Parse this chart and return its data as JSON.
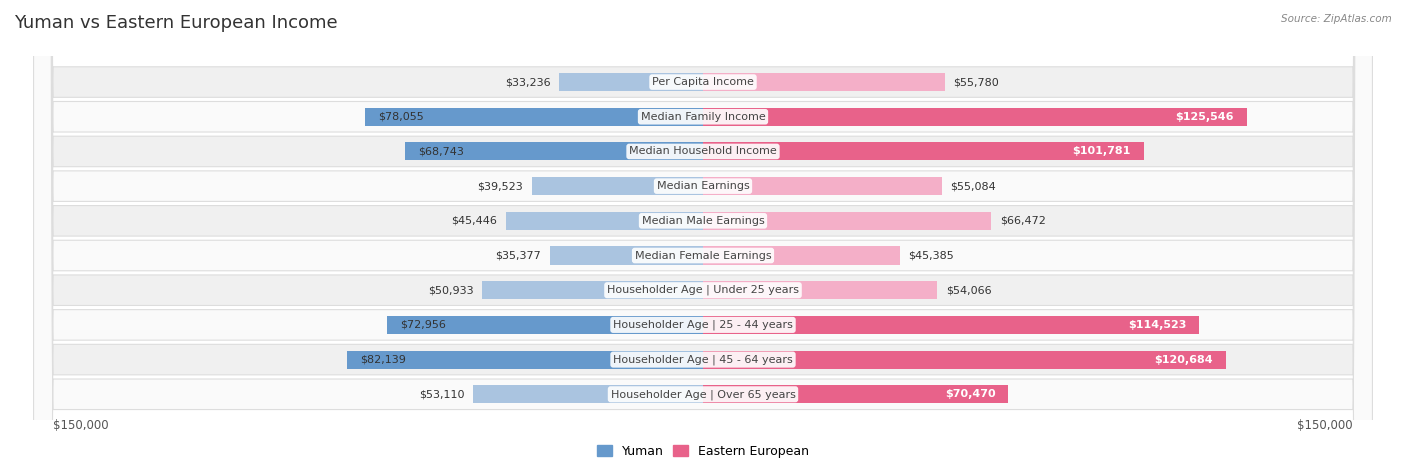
{
  "title": "Yuman vs Eastern European Income",
  "source": "Source: ZipAtlas.com",
  "categories": [
    "Per Capita Income",
    "Median Family Income",
    "Median Household Income",
    "Median Earnings",
    "Median Male Earnings",
    "Median Female Earnings",
    "Householder Age | Under 25 years",
    "Householder Age | 25 - 44 years",
    "Householder Age | 45 - 64 years",
    "Householder Age | Over 65 years"
  ],
  "yuman_values": [
    33236,
    78055,
    68743,
    39523,
    45446,
    35377,
    50933,
    72956,
    82139,
    53110
  ],
  "eastern_values": [
    55780,
    125546,
    101781,
    55084,
    66472,
    45385,
    54066,
    114523,
    120684,
    70470
  ],
  "yuman_color_dark": "#6699cc",
  "yuman_color_light": "#aac4e0",
  "eastern_color_dark": "#e8628a",
  "eastern_color_light": "#f4afc8",
  "yuman_label": "Yuman",
  "eastern_label": "Eastern European",
  "axis_max": 150000,
  "row_bg_even": "#f0f0f0",
  "row_bg_odd": "#fafafa",
  "row_border": "#dddddd",
  "title_fontsize": 13,
  "value_fontsize": 8,
  "cat_fontsize": 8,
  "xlabel_left": "$150,000",
  "xlabel_right": "$150,000"
}
